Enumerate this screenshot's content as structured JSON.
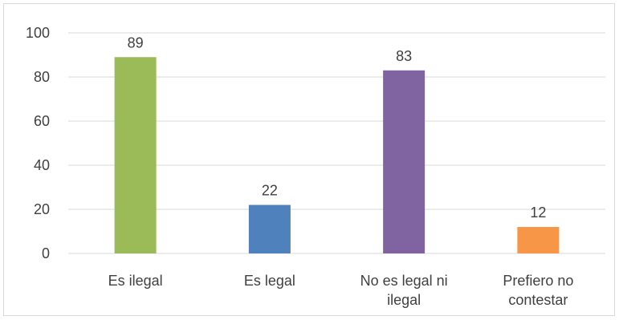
{
  "chart_data": {
    "type": "bar",
    "title": "",
    "xlabel": "",
    "ylabel": "",
    "categories": [
      [
        "Es ilegal"
      ],
      [
        "Es legal"
      ],
      [
        "No es legal ni",
        "ilegal"
      ],
      [
        "Prefiero no",
        "contestar"
      ]
    ],
    "values": [
      89,
      22,
      83,
      12
    ],
    "colors": [
      "#9bbb59",
      "#4f81bd",
      "#8064a2",
      "#f79646"
    ],
    "ylim": [
      0,
      100
    ],
    "yticks": [
      0,
      20,
      40,
      60,
      80,
      100
    ],
    "grid": true,
    "legend": "none"
  }
}
